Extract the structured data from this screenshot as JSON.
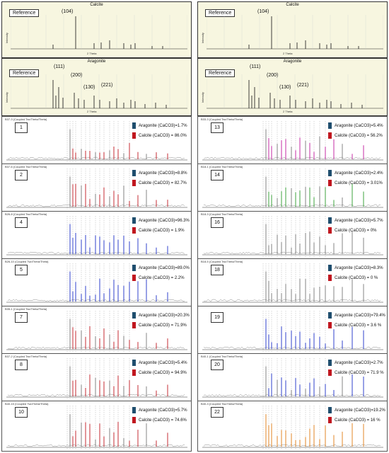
{
  "colors": {
    "aragonite": "#1f4e6e",
    "calcite": "#c0161f",
    "ref_bg": "#f7f6e0"
  },
  "reference": {
    "calcite": {
      "title": "Calcite",
      "label": "Reference",
      "ylabel": "Intensity",
      "xlabel": "2 Theta",
      "peaks": [
        "(104)"
      ]
    },
    "aragonite": {
      "title": "Aragonite",
      "label": "Reference",
      "ylabel": "Intensity",
      "xlabel": "2 Theta",
      "peaks": [
        "(111)",
        "(200)",
        "(130)",
        "(221)"
      ]
    }
  },
  "chart_data": [
    {
      "type": "table",
      "panel": "1",
      "title": "B37-3 (Coupled TwoTheta/Theta)",
      "aragonite": "Aragonite (CaCO3)=1.7%",
      "calcite": "Calcite (CaCO3) =  86.0%",
      "aragonite_pct": 1.7,
      "calcite_pct": 86.0
    },
    {
      "type": "table",
      "panel": "2",
      "title": "B37-6 (Coupled TwoTheta/Theta)",
      "aragonite": "Aragonite (CaCO3)=8.8%",
      "calcite": "Calcite (CaCO3) =  82.7%",
      "aragonite_pct": 8.8,
      "calcite_pct": 82.7
    },
    {
      "type": "table",
      "panel": "4",
      "title": "B26-8 (Coupled TwoTheta/Theta)",
      "aragonite": "Aragonite (CaCO3)=96.3%",
      "calcite": "Calcite (CaCO3) =  1.9%",
      "aragonite_pct": 96.3,
      "calcite_pct": 1.9
    },
    {
      "type": "table",
      "panel": "5",
      "title": "B26-10 (Coupled TwoTheta/Theta)",
      "aragonite": "Aragonite (CaCO3)=89.0%",
      "calcite": "Calcite (CaCO3) =  2.2%",
      "aragonite_pct": 89.0,
      "calcite_pct": 2.2
    },
    {
      "type": "table",
      "panel": "7",
      "title": "B35-1 (Coupled TwoTheta/Theta)",
      "aragonite": "Aragonite (CaCO3)=20.3%",
      "calcite": "Calcite (CaCO3) =  71.9%",
      "aragonite_pct": 20.3,
      "calcite_pct": 71.9
    },
    {
      "type": "table",
      "panel": "8",
      "title": "B37-2 (Coupled TwoTheta/Theta)",
      "aragonite": "Aragonite (CaCO3)=5.4%",
      "calcite": "Calcite (CaCO3) =  94.9%",
      "aragonite_pct": 5.4,
      "calcite_pct": 94.9
    },
    {
      "type": "table",
      "panel": "10",
      "title": "B40-15 (Coupled TwoTheta/Theta)",
      "aragonite": "Aragonite (CaCO3)=5.7%",
      "calcite": "Calcite (CaCO3) =  74.6%",
      "aragonite_pct": 5.7,
      "calcite_pct": 74.6
    },
    {
      "type": "table",
      "panel": "13",
      "title": "B33-3 (Coupled TwoTheta/Theta)",
      "aragonite": "Aragonite (CaCO3)=5.4%",
      "calcite": "Calcite (CaCO3) =  56.2%",
      "aragonite_pct": 5.4,
      "calcite_pct": 56.2
    },
    {
      "type": "table",
      "panel": "14",
      "title": "B18-1 (Coupled TwoTheta/Theta)",
      "aragonite": "Aragonite (CaCO3)=2.4%",
      "calcite": "Calcite (CaCO3) =  3.01%",
      "aragonite_pct": 2.4,
      "calcite_pct": 3.01
    },
    {
      "type": "table",
      "panel": "16",
      "title": "B18-3 (Coupled TwoTheta/Theta)",
      "aragonite": "Aragonite (CaCO3)=5.7%",
      "calcite": "Calcite (CaCO3) =  0%",
      "aragonite_pct": 5.7,
      "calcite_pct": 0
    },
    {
      "type": "table",
      "panel": "18",
      "title": "B18-5 (Coupled TwoTheta/Theta)",
      "aragonite": "Aragonite (CaCO3)=8.3%",
      "calcite": "Calcite (CaCO3) =  0 %",
      "aragonite_pct": 8.3,
      "calcite_pct": 0
    },
    {
      "type": "table",
      "panel": "19",
      "title": "",
      "aragonite": "Aragonite (CaCO3)=79.4%",
      "calcite": "Calcite (CaCO3) =  3.6 %",
      "aragonite_pct": 79.4,
      "calcite_pct": 3.6
    },
    {
      "type": "table",
      "panel": "20",
      "title": "B40-1 (Coupled TwoTheta/Theta)",
      "aragonite": "Aragonite (CaCO3)=2.7%",
      "calcite": "Calcite (CaCO3) =  71.9 %",
      "aragonite_pct": 2.7,
      "calcite_pct": 71.9
    },
    {
      "type": "table",
      "panel": "22",
      "title": "B40-3 (Coupled TwoTheta/Theta)",
      "aragonite": "Aragonite (CaCO3)=19.2%",
      "calcite": "Calcite (CaCO3) =  16 %",
      "aragonite_pct": 19.2,
      "calcite_pct": 16
    }
  ]
}
